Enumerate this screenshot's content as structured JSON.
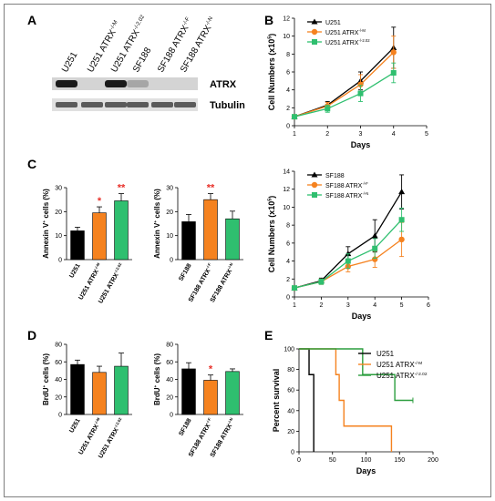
{
  "panels": {
    "A": "A",
    "B": "B",
    "C": "C",
    "D": "D",
    "E": "E"
  },
  "blot": {
    "lanes": [
      "U251",
      "U251 ATRX",
      "U251 ATRX",
      "SF188",
      "SF188 ATRX",
      "SF188 ATRX"
    ],
    "lane_sups": [
      "",
      "-/-M",
      "-/-2.02",
      "",
      "-/-F",
      "-/-N"
    ],
    "rows": [
      "ATRX",
      "Tubulin"
    ],
    "atrx_band_intensity": [
      1,
      0,
      1,
      0.25,
      0,
      0
    ]
  },
  "chart_data": [
    {
      "id": "B_top",
      "type": "line",
      "title": "",
      "xlabel": "Days",
      "ylabel_main": "Cell Numbers (x10",
      "ylabel_sup": "5",
      "ylabel_end": ")",
      "xlim": [
        1,
        5
      ],
      "ylim": [
        0,
        12
      ],
      "xticks": [
        1,
        2,
        3,
        4,
        5
      ],
      "yticks": [
        0,
        2,
        4,
        6,
        8,
        10,
        12
      ],
      "legend_position": "top-left",
      "x": [
        1,
        2,
        3,
        4
      ],
      "series": [
        {
          "name": "U251",
          "sup": "",
          "color": "#000000",
          "marker": "triangle",
          "values": [
            1.0,
            2.3,
            5.0,
            8.7
          ],
          "errors": [
            0.1,
            0.4,
            1.0,
            2.3
          ]
        },
        {
          "name": "U251 ATRX",
          "sup": "-/-M",
          "color": "#f5821f",
          "marker": "circle",
          "values": [
            1.0,
            2.2,
            4.6,
            8.2
          ],
          "errors": [
            0.1,
            0.4,
            1.1,
            1.8
          ]
        },
        {
          "name": "U251 ATRX",
          "sup": "-/-2.02",
          "color": "#2fbf6f",
          "marker": "square",
          "values": [
            1.0,
            1.9,
            3.6,
            5.9
          ],
          "errors": [
            0.1,
            0.4,
            0.9,
            1.1
          ]
        }
      ]
    },
    {
      "id": "B_bottom",
      "type": "line",
      "title": "",
      "xlabel": "Days",
      "ylabel_main": "Cell Numbers (x10",
      "ylabel_sup": "5",
      "ylabel_end": ")",
      "xlim": [
        1,
        6
      ],
      "ylim": [
        0,
        14
      ],
      "xticks": [
        1,
        2,
        3,
        4,
        5,
        6
      ],
      "yticks": [
        0,
        2,
        4,
        6,
        8,
        10,
        12,
        14
      ],
      "legend_position": "top-left",
      "x": [
        1,
        2,
        3,
        4,
        5
      ],
      "series": [
        {
          "name": "SF188",
          "sup": "",
          "color": "#000000",
          "marker": "triangle",
          "values": [
            1.0,
            1.8,
            4.8,
            6.8,
            11.7
          ],
          "errors": [
            0.1,
            0.3,
            0.8,
            1.8,
            1.9
          ]
        },
        {
          "name": "SF188 ATRX",
          "sup": "-/-F",
          "color": "#f5821f",
          "marker": "circle",
          "values": [
            1.0,
            1.7,
            3.4,
            4.2,
            6.4
          ],
          "errors": [
            0.1,
            0.3,
            0.6,
            0.9,
            1.9
          ]
        },
        {
          "name": "SF188 ATRX",
          "sup": "-/-N",
          "color": "#2fbf6f",
          "marker": "square",
          "values": [
            1.0,
            1.7,
            4.0,
            5.4,
            8.6
          ],
          "errors": [
            0.1,
            0.3,
            0.8,
            1.1,
            1.3
          ]
        }
      ]
    },
    {
      "id": "C_left",
      "type": "bar",
      "ylabel_main": "Annexin V",
      "ylabel_sup": "+",
      "ylabel_end": " cells (%)",
      "ylim": [
        0,
        30
      ],
      "yticks": [
        0,
        10,
        20,
        30
      ],
      "categories": [
        "U251",
        "U251 ATRX",
        "U251 ATRX"
      ],
      "category_sups": [
        "",
        "-/-M",
        "-/-2.02"
      ],
      "values": [
        12,
        19.5,
        24.5
      ],
      "errors": [
        1.5,
        2.5,
        3.0
      ],
      "colors": [
        "#000000",
        "#f5821f",
        "#2fbf6f"
      ],
      "annotations": [
        "",
        "*",
        "**"
      ],
      "annotation_color": "#e8312a"
    },
    {
      "id": "C_right",
      "type": "bar",
      "ylabel_main": "Annexin V",
      "ylabel_sup": "+",
      "ylabel_end": " cells (%)",
      "ylim": [
        0,
        30
      ],
      "yticks": [
        0,
        10,
        20,
        30
      ],
      "categories": [
        "SF188",
        "SF188 ATRX",
        "SF188 ATRX"
      ],
      "category_sups": [
        "",
        "-/-F",
        "-/-N"
      ],
      "values": [
        15.8,
        25,
        17
      ],
      "errors": [
        3.0,
        2.5,
        3.2
      ],
      "colors": [
        "#000000",
        "#f5821f",
        "#2fbf6f"
      ],
      "annotations": [
        "",
        "**",
        ""
      ],
      "annotation_color": "#e8312a"
    },
    {
      "id": "D_left",
      "type": "bar",
      "ylabel_main": "BrdU",
      "ylabel_sup": "+",
      "ylabel_end": " cells (%)",
      "ylim": [
        0,
        80
      ],
      "yticks": [
        0,
        20,
        40,
        60,
        80
      ],
      "categories": [
        "U251",
        "U251 ATRX",
        "U251 ATRX"
      ],
      "category_sups": [
        "",
        "-/-M",
        "-/-2.02"
      ],
      "values": [
        57,
        48,
        55
      ],
      "errors": [
        5,
        7,
        15
      ],
      "colors": [
        "#000000",
        "#f5821f",
        "#2fbf6f"
      ],
      "annotations": [
        "",
        "",
        ""
      ],
      "annotation_color": "#e8312a"
    },
    {
      "id": "D_right",
      "type": "bar",
      "ylabel_main": "BrdU",
      "ylabel_sup": "+",
      "ylabel_end": " cells (%)",
      "ylim": [
        0,
        80
      ],
      "yticks": [
        0,
        20,
        40,
        60,
        80
      ],
      "categories": [
        "SF188",
        "SF188 ATRX",
        "SF188 ATRX"
      ],
      "category_sups": [
        "",
        "-/-F",
        "-/-N"
      ],
      "values": [
        52,
        39,
        49
      ],
      "errors": [
        7,
        6,
        3
      ],
      "colors": [
        "#000000",
        "#f5821f",
        "#2fbf6f"
      ],
      "annotations": [
        "",
        "*",
        ""
      ],
      "annotation_color": "#e8312a"
    },
    {
      "id": "E",
      "type": "line",
      "xlabel": "Days",
      "ylabel_main": "Percent survival",
      "ylabel_sup": "",
      "ylabel_end": "",
      "xlim": [
        0,
        200
      ],
      "ylim": [
        0,
        100
      ],
      "xticks": [
        0,
        50,
        100,
        150,
        200
      ],
      "yticks": [
        0,
        20,
        40,
        60,
        80,
        100
      ],
      "legend_position": "top-right",
      "series": [
        {
          "name": "U251",
          "sup": "",
          "color": "#000000",
          "step_x": [
            0,
            15,
            22
          ],
          "step_y": [
            100,
            75,
            0
          ],
          "end_x": 22
        },
        {
          "name": "U251 ATRX",
          "sup": "-/-M",
          "color": "#f5821f",
          "step_x": [
            0,
            55,
            60,
            67,
            138
          ],
          "step_y": [
            100,
            75,
            50,
            25,
            0
          ],
          "end_x": 138
        },
        {
          "name": "U251 ATRX",
          "sup": "-/-2.02",
          "color": "#2c9e3f",
          "step_x": [
            0,
            95,
            143
          ],
          "step_y": [
            100,
            75,
            50
          ],
          "end_x": 170
        }
      ]
    }
  ]
}
